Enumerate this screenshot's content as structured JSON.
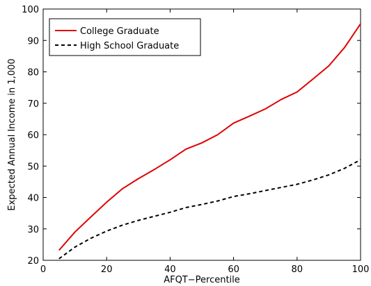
{
  "chart_data": {
    "type": "line",
    "title": "",
    "xlabel": "AFQT−Percentile",
    "ylabel": "Expected Annual Income in 1,000",
    "xlim": [
      0,
      100
    ],
    "ylim": [
      20,
      100
    ],
    "xticks": [
      0,
      20,
      40,
      60,
      80,
      100
    ],
    "yticks": [
      20,
      30,
      40,
      50,
      60,
      70,
      80,
      90,
      100
    ],
    "grid": false,
    "legend_position": "top-left",
    "series": [
      {
        "name": "College Graduate",
        "color": "#e00000",
        "style": "solid",
        "x": [
          5,
          10,
          15,
          20,
          25,
          30,
          35,
          40,
          45,
          50,
          55,
          60,
          65,
          70,
          75,
          80,
          85,
          90,
          95,
          100
        ],
        "values": [
          23.2,
          29.0,
          33.8,
          38.5,
          42.8,
          46.0,
          48.9,
          52.0,
          55.4,
          57.4,
          60.0,
          63.7,
          65.9,
          68.2,
          71.2,
          73.6,
          77.7,
          81.9,
          87.8,
          95.3
        ]
      },
      {
        "name": "High School Graduate",
        "color": "#000000",
        "style": "dashed",
        "x": [
          5,
          10,
          15,
          20,
          25,
          30,
          35,
          40,
          45,
          50,
          55,
          60,
          65,
          70,
          75,
          80,
          85,
          90,
          95,
          100
        ],
        "values": [
          20.5,
          24.2,
          27.0,
          29.3,
          31.2,
          32.7,
          34.0,
          35.3,
          36.8,
          37.8,
          38.9,
          40.3,
          41.2,
          42.2,
          43.2,
          44.2,
          45.6,
          47.2,
          49.3,
          52.0
        ]
      }
    ]
  }
}
